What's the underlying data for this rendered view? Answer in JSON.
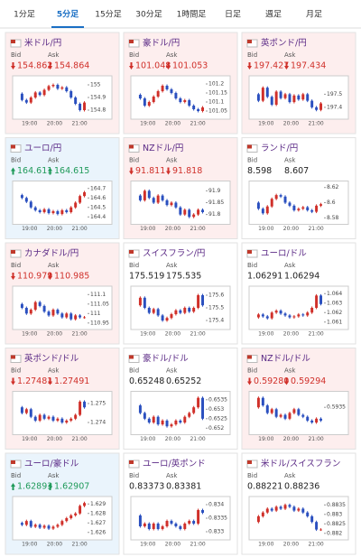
{
  "tabs": [
    "1分足",
    "5分足",
    "15分足",
    "30分足",
    "1時間足",
    "日足",
    "週足",
    "月足"
  ],
  "active_tab": 1,
  "quote_labels": {
    "bid": "Bid",
    "ask": "Ask"
  },
  "time_labels": [
    "19:00",
    "20:00",
    "21:00"
  ],
  "cards": [
    {
      "name": "米ドル/円",
      "trend": "down",
      "bid": "154.862",
      "ask": "154.864",
      "chart": {
        "ylim": [
          154.75,
          155.05
        ],
        "yticks": [
          155,
          154.9,
          154.8
        ],
        "prices": [
          154.93,
          154.88,
          154.86,
          154.9,
          154.94,
          154.92,
          154.96,
          154.99,
          155.0,
          154.97,
          154.98,
          154.95,
          154.9,
          154.85,
          154.8,
          154.86
        ]
      }
    },
    {
      "name": "豪ドル/円",
      "trend": "down",
      "bid": "101.048",
      "ask": "101.053",
      "chart": {
        "ylim": [
          101.02,
          101.23
        ],
        "yticks": [
          101.2,
          101.15,
          101.1,
          101.05
        ],
        "prices": [
          101.14,
          101.12,
          101.08,
          101.1,
          101.13,
          101.16,
          101.19,
          101.17,
          101.15,
          101.12,
          101.1,
          101.11,
          101.08,
          101.06,
          101.05,
          101.07
        ]
      }
    },
    {
      "name": "英ポンド/円",
      "trend": "down",
      "bid": "197.427",
      "ask": "197.434",
      "chart": {
        "ylim": [
          197.33,
          197.62
        ],
        "yticks": [
          197.5,
          197.4
        ],
        "prices": [
          197.5,
          197.45,
          197.55,
          197.48,
          197.42,
          197.52,
          197.47,
          197.5,
          197.44,
          197.49,
          197.46,
          197.5,
          197.45,
          197.4,
          197.38,
          197.43
        ]
      }
    },
    {
      "name": "ユーロ/円",
      "trend": "up",
      "bid": "164.611",
      "ask": "164.615",
      "chart": {
        "ylim": [
          164.35,
          164.75
        ],
        "yticks": [
          164.7,
          164.6,
          164.5,
          164.4
        ],
        "prices": [
          164.63,
          164.6,
          164.56,
          164.5,
          164.47,
          164.45,
          164.48,
          164.44,
          164.46,
          164.43,
          164.47,
          164.45,
          164.5,
          164.55,
          164.62,
          164.66
        ]
      }
    },
    {
      "name": "NZドル/円",
      "trend": "down",
      "bid": "91.811",
      "ask": "91.818",
      "chart": {
        "ylim": [
          91.77,
          91.93
        ],
        "yticks": [
          91.9,
          91.85,
          91.8
        ],
        "prices": [
          91.88,
          91.86,
          91.9,
          91.87,
          91.85,
          91.88,
          91.86,
          91.84,
          91.85,
          91.83,
          91.8,
          91.82,
          91.79,
          91.8,
          91.82,
          91.81
        ]
      }
    },
    {
      "name": "ランド/円",
      "bid": "8.598",
      "ask": "8.607",
      "chart": {
        "ylim": [
          8.575,
          8.625
        ],
        "yticks": [
          8.62,
          8.6,
          8.58
        ],
        "prices": [
          8.6,
          8.592,
          8.586,
          8.595,
          8.605,
          8.61,
          8.608,
          8.6,
          8.596,
          8.59,
          8.592,
          8.594,
          8.59,
          8.588,
          8.596,
          8.598
        ]
      }
    },
    {
      "name": "カナダドル/円",
      "trend": "down",
      "bid": "110.979",
      "ask": "110.985",
      "chart": {
        "ylim": [
          110.93,
          111.13
        ],
        "yticks": [
          111.1,
          111.05,
          111,
          110.95
        ],
        "prices": [
          111.05,
          111.03,
          111.0,
          111.02,
          111.06,
          111.04,
          111.01,
          110.99,
          111.02,
          111.0,
          110.98,
          111.0,
          110.97,
          110.99,
          110.98,
          110.98
        ]
      }
    },
    {
      "name": "スイスフラン/円",
      "bid": "175.519",
      "ask": "175.535",
      "chart": {
        "ylim": [
          175.35,
          175.65
        ],
        "yticks": [
          175.6,
          175.5,
          175.4
        ],
        "prices": [
          175.52,
          175.58,
          175.5,
          175.46,
          175.49,
          175.44,
          175.4,
          175.42,
          175.45,
          175.48,
          175.46,
          175.5,
          175.47,
          175.5,
          175.6,
          175.52
        ]
      }
    },
    {
      "name": "ユーロ/ドル",
      "bid": "1.06291",
      "ask": "1.06294",
      "chart": {
        "ylim": [
          1.0605,
          1.0645
        ],
        "yticks": [
          1.064,
          1.063,
          1.062,
          1.061
        ],
        "prices": [
          1.0615,
          1.0618,
          1.0616,
          1.0614,
          1.062,
          1.0622,
          1.0619,
          1.0617,
          1.0615,
          1.0616,
          1.0618,
          1.0617,
          1.062,
          1.0625,
          1.0638,
          1.0629
        ]
      }
    },
    {
      "name": "英ポンド/ドル",
      "trend": "down",
      "bid": "1.27481",
      "ask": "1.27491",
      "chart": {
        "ylim": [
          1.2735,
          1.2755
        ],
        "yticks": [
          1.275,
          1.274
        ],
        "prices": [
          1.2748,
          1.2745,
          1.2747,
          1.2743,
          1.2741,
          1.2744,
          1.2742,
          1.2743,
          1.2741,
          1.2742,
          1.274,
          1.2741,
          1.2742,
          1.2744,
          1.2751,
          1.2748
        ]
      }
    },
    {
      "name": "豪ドル/ドル",
      "bid": "0.65248",
      "ask": "0.65252",
      "chart": {
        "ylim": [
          0.6518,
          0.6538
        ],
        "yticks": [
          0.6535,
          0.653,
          0.6525,
          0.652
        ],
        "prices": [
          0.6532,
          0.6528,
          0.6525,
          0.6523,
          0.6526,
          0.6522,
          0.6524,
          0.6521,
          0.6522,
          0.6524,
          0.6523,
          0.6526,
          0.6528,
          0.6531,
          0.6536,
          0.6525
        ]
      }
    },
    {
      "name": "NZドル/ドル",
      "trend": "down",
      "bid": "0.59280",
      "ask": "0.59294",
      "chart": {
        "ylim": [
          0.5922,
          0.5942
        ],
        "yticks": [
          0.5935
        ],
        "prices": [
          0.5935,
          0.594,
          0.5936,
          0.5932,
          0.5934,
          0.593,
          0.5931,
          0.5929,
          0.5932,
          0.5934,
          0.5931,
          0.593,
          0.5928,
          0.5927,
          0.5929,
          0.5928
        ]
      }
    },
    {
      "name": "ユーロ/豪ドル",
      "trend": "up",
      "bid": "1.62893",
      "ask": "1.62907",
      "chart": {
        "ylim": [
          1.6255,
          1.6295
        ],
        "yticks": [
          1.629,
          1.628,
          1.627,
          1.626
        ],
        "prices": [
          1.627,
          1.6268,
          1.6272,
          1.6266,
          1.6268,
          1.6265,
          1.6267,
          1.6264,
          1.6266,
          1.6268,
          1.6272,
          1.6275,
          1.6278,
          1.628,
          1.6288,
          1.6291
        ]
      }
    },
    {
      "name": "ユーロ/英ポンド",
      "bid": "0.83373",
      "ask": "0.83381",
      "chart": {
        "ylim": [
          0.8328,
          0.8342
        ],
        "yticks": [
          0.834,
          0.8335,
          0.833
        ],
        "prices": [
          0.8336,
          0.8332,
          0.8333,
          0.8331,
          0.8333,
          0.8331,
          0.8332,
          0.8334,
          0.8333,
          0.8332,
          0.8331,
          0.8333,
          0.8334,
          0.8333,
          0.8338,
          0.8337
        ]
      }
    },
    {
      "name": "米ドル/スイスフラン",
      "bid": "0.88221",
      "ask": "0.88236",
      "chart": {
        "ylim": [
          0.8818,
          0.8838
        ],
        "yticks": [
          0.8835,
          0.883,
          0.8825,
          0.882
        ],
        "prices": [
          0.8826,
          0.8829,
          0.8831,
          0.8833,
          0.8832,
          0.8834,
          0.8833,
          0.8835,
          0.8834,
          0.8832,
          0.8833,
          0.8831,
          0.8829,
          0.8826,
          0.8822,
          0.8822
        ]
      }
    }
  ]
}
